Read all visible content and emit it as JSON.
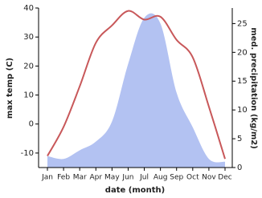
{
  "chart_data": {
    "type": "line-area",
    "x_label": "date (month)",
    "y_label": "max temp (C)",
    "y2_label": "med. precipitation (kg/m2)",
    "categories": [
      "Jan",
      "Feb",
      "Mar",
      "Apr",
      "May",
      "Jun",
      "Jul",
      "Aug",
      "Sep",
      "Oct",
      "Nov",
      "Dec"
    ],
    "series": [
      {
        "name": "max temp",
        "kind": "line",
        "color": "#c8585a",
        "values": [
          -11,
          -1,
          13,
          28,
          34,
          39,
          36,
          37,
          29,
          23,
          6,
          -12
        ]
      },
      {
        "name": "med. precipitation",
        "kind": "area",
        "axis": "y2",
        "color": "#b3c2f2",
        "values": [
          2,
          1.5,
          3,
          4.5,
          8,
          18,
          26,
          25,
          13,
          7,
          1.5,
          1
        ]
      }
    ],
    "ylim": [
      -15,
      40
    ],
    "yticks": [
      -10,
      0,
      10,
      20,
      30,
      40
    ],
    "y2lim": [
      0,
      27.7
    ],
    "y2ticks": [
      0,
      5,
      10,
      15,
      20,
      25
    ]
  }
}
